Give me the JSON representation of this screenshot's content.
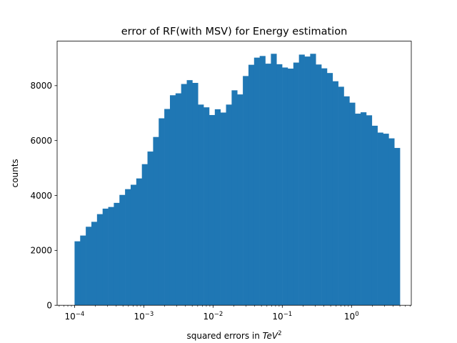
{
  "chart_data": {
    "type": "bar",
    "title": "error of RF(with MSV) for Energy estimation",
    "xlabel_prefix": "squared errors in ",
    "xlabel_math": "TeV",
    "xlabel_sup": "2",
    "ylabel": "counts",
    "xscale": "log",
    "xlim": [
      5.6e-05,
      7.3
    ],
    "ylim": [
      0,
      9620
    ],
    "bar_color": "#1f77b4",
    "x_tick_values": [
      0.0001,
      0.001,
      0.01,
      0.1,
      1
    ],
    "x_tick_labels": [
      {
        "base": "10",
        "sup": "−4"
      },
      {
        "base": "10",
        "sup": "−3"
      },
      {
        "base": "10",
        "sup": "−2"
      },
      {
        "base": "10",
        "sup": "−1"
      },
      {
        "base": "10",
        "sup": "0"
      }
    ],
    "y_ticks": [
      0,
      2000,
      4000,
      6000,
      8000
    ],
    "y_tick_labels": [
      "0",
      "2000",
      "4000",
      "6000",
      "8000"
    ],
    "bin_range": [
      0.0001,
      5.0
    ],
    "counts": [
      2330,
      2540,
      2860,
      3040,
      3320,
      3520,
      3580,
      3730,
      4020,
      4230,
      4390,
      4620,
      5140,
      5600,
      6130,
      6810,
      7150,
      7650,
      7720,
      8060,
      8200,
      8100,
      7310,
      7210,
      6930,
      7140,
      7020,
      7310,
      7830,
      7680,
      8350,
      8760,
      9020,
      9080,
      8800,
      9160,
      8780,
      8660,
      8620,
      8840,
      9130,
      9060,
      9160,
      8770,
      8630,
      8460,
      8160,
      7960,
      7610,
      7380,
      6980,
      7030,
      6920,
      6540,
      6290,
      6250,
      6080,
      5730
    ]
  }
}
